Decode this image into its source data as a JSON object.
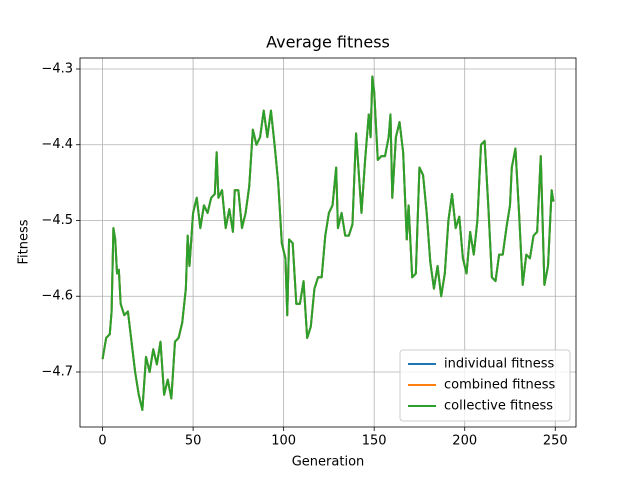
{
  "chart_data": {
    "type": "line",
    "title": "Average fitness",
    "xlabel": "Generation",
    "ylabel": "Fitness",
    "grid": true,
    "legend": "lower right",
    "xlim": [
      -12.45,
      261.45
    ],
    "ylim": [
      -4.7726,
      -4.2855
    ],
    "xticks": [
      0,
      50,
      100,
      150,
      200,
      250
    ],
    "yticks": [
      {
        "value": -4.7,
        "label": "−4.7"
      },
      {
        "value": -4.6,
        "label": "−4.6"
      },
      {
        "value": -4.5,
        "label": "−4.5"
      },
      {
        "value": -4.4,
        "label": "−4.4"
      },
      {
        "value": -4.3,
        "label": "−4.3"
      }
    ],
    "x": [
      0,
      2,
      4,
      5,
      6,
      7,
      8,
      9,
      10,
      12,
      14,
      16,
      18,
      20,
      22,
      24,
      26,
      28,
      30,
      32,
      34,
      36,
      38,
      40,
      42,
      44,
      46,
      47,
      48,
      50,
      52,
      54,
      56,
      58,
      60,
      62,
      63,
      64,
      66,
      68,
      70,
      72,
      73,
      75,
      77,
      79,
      81,
      83,
      85,
      87,
      89,
      91,
      93,
      95,
      97,
      99,
      101,
      102,
      103,
      105,
      107,
      109,
      111,
      113,
      115,
      117,
      119,
      121,
      123,
      125,
      127,
      129,
      130,
      132,
      134,
      136,
      138,
      140,
      141,
      143,
      145,
      147,
      148,
      149,
      150,
      152,
      154,
      156,
      158,
      159,
      160,
      162,
      164,
      166,
      168,
      169,
      171,
      173,
      175,
      177,
      179,
      181,
      183,
      185,
      187,
      189,
      191,
      193,
      195,
      197,
      199,
      201,
      203,
      205,
      207,
      209,
      211,
      213,
      215,
      217,
      219,
      221,
      223,
      225,
      226,
      228,
      230,
      232,
      234,
      236,
      238,
      240,
      242,
      244,
      246,
      248,
      249
    ],
    "series": [
      {
        "name": "individual fitness",
        "color": "#1f77b4",
        "values": [
          -4.683,
          -4.655,
          -4.65,
          -4.62,
          -4.51,
          -4.525,
          -4.57,
          -4.565,
          -4.61,
          -4.625,
          -4.62,
          -4.66,
          -4.7,
          -4.73,
          -4.75,
          -4.68,
          -4.7,
          -4.67,
          -4.69,
          -4.66,
          -4.73,
          -4.71,
          -4.735,
          -4.66,
          -4.655,
          -4.635,
          -4.59,
          -4.52,
          -4.56,
          -4.49,
          -4.47,
          -4.51,
          -4.48,
          -4.49,
          -4.47,
          -4.465,
          -4.41,
          -4.47,
          -4.46,
          -4.51,
          -4.485,
          -4.515,
          -4.46,
          -4.46,
          -4.51,
          -4.49,
          -4.455,
          -4.38,
          -4.4,
          -4.39,
          -4.355,
          -4.39,
          -4.355,
          -4.4,
          -4.45,
          -4.53,
          -4.55,
          -4.625,
          -4.525,
          -4.53,
          -4.61,
          -4.61,
          -4.58,
          -4.655,
          -4.64,
          -4.59,
          -4.575,
          -4.575,
          -4.52,
          -4.49,
          -4.48,
          -4.43,
          -4.51,
          -4.49,
          -4.52,
          -4.52,
          -4.505,
          -4.385,
          -4.42,
          -4.49,
          -4.42,
          -4.36,
          -4.39,
          -4.31,
          -4.33,
          -4.42,
          -4.415,
          -4.415,
          -4.39,
          -4.36,
          -4.47,
          -4.39,
          -4.37,
          -4.41,
          -4.525,
          -4.48,
          -4.575,
          -4.57,
          -4.43,
          -4.44,
          -4.49,
          -4.555,
          -4.59,
          -4.56,
          -4.6,
          -4.57,
          -4.5,
          -4.465,
          -4.51,
          -4.495,
          -4.55,
          -4.57,
          -4.515,
          -4.545,
          -4.5,
          -4.4,
          -4.395,
          -4.48,
          -4.575,
          -4.58,
          -4.545,
          -4.545,
          -4.51,
          -4.48,
          -4.43,
          -4.405,
          -4.49,
          -4.585,
          -4.545,
          -4.55,
          -4.52,
          -4.515,
          -4.415,
          -4.585,
          -4.56,
          -4.46,
          -4.475
        ]
      },
      {
        "name": "combined fitness",
        "color": "#ff7f0e",
        "values": [
          -4.683,
          -4.655,
          -4.65,
          -4.62,
          -4.51,
          -4.525,
          -4.57,
          -4.565,
          -4.61,
          -4.625,
          -4.62,
          -4.66,
          -4.7,
          -4.73,
          -4.75,
          -4.68,
          -4.7,
          -4.67,
          -4.69,
          -4.66,
          -4.73,
          -4.71,
          -4.735,
          -4.66,
          -4.655,
          -4.635,
          -4.59,
          -4.52,
          -4.56,
          -4.49,
          -4.47,
          -4.51,
          -4.48,
          -4.49,
          -4.47,
          -4.465,
          -4.41,
          -4.47,
          -4.46,
          -4.51,
          -4.485,
          -4.515,
          -4.46,
          -4.46,
          -4.51,
          -4.49,
          -4.455,
          -4.38,
          -4.4,
          -4.39,
          -4.355,
          -4.39,
          -4.355,
          -4.4,
          -4.45,
          -4.53,
          -4.55,
          -4.625,
          -4.525,
          -4.53,
          -4.61,
          -4.61,
          -4.58,
          -4.655,
          -4.64,
          -4.59,
          -4.575,
          -4.575,
          -4.52,
          -4.49,
          -4.48,
          -4.43,
          -4.51,
          -4.49,
          -4.52,
          -4.52,
          -4.505,
          -4.385,
          -4.42,
          -4.49,
          -4.42,
          -4.36,
          -4.39,
          -4.31,
          -4.33,
          -4.42,
          -4.415,
          -4.415,
          -4.39,
          -4.36,
          -4.47,
          -4.39,
          -4.37,
          -4.41,
          -4.525,
          -4.48,
          -4.575,
          -4.57,
          -4.43,
          -4.44,
          -4.49,
          -4.555,
          -4.59,
          -4.56,
          -4.6,
          -4.57,
          -4.5,
          -4.465,
          -4.51,
          -4.495,
          -4.55,
          -4.57,
          -4.515,
          -4.545,
          -4.5,
          -4.4,
          -4.395,
          -4.48,
          -4.575,
          -4.58,
          -4.545,
          -4.545,
          -4.51,
          -4.48,
          -4.43,
          -4.405,
          -4.49,
          -4.585,
          -4.545,
          -4.55,
          -4.52,
          -4.515,
          -4.415,
          -4.585,
          -4.56,
          -4.46,
          -4.475
        ]
      },
      {
        "name": "collective fitness",
        "color": "#2ca02c",
        "values": [
          -4.683,
          -4.655,
          -4.65,
          -4.62,
          -4.51,
          -4.525,
          -4.57,
          -4.565,
          -4.61,
          -4.625,
          -4.62,
          -4.66,
          -4.7,
          -4.73,
          -4.75,
          -4.68,
          -4.7,
          -4.67,
          -4.69,
          -4.66,
          -4.73,
          -4.71,
          -4.735,
          -4.66,
          -4.655,
          -4.635,
          -4.59,
          -4.52,
          -4.56,
          -4.49,
          -4.47,
          -4.51,
          -4.48,
          -4.49,
          -4.47,
          -4.465,
          -4.41,
          -4.47,
          -4.46,
          -4.51,
          -4.485,
          -4.515,
          -4.46,
          -4.46,
          -4.51,
          -4.49,
          -4.455,
          -4.38,
          -4.4,
          -4.39,
          -4.355,
          -4.39,
          -4.355,
          -4.4,
          -4.45,
          -4.53,
          -4.55,
          -4.625,
          -4.525,
          -4.53,
          -4.61,
          -4.61,
          -4.58,
          -4.655,
          -4.64,
          -4.59,
          -4.575,
          -4.575,
          -4.52,
          -4.49,
          -4.48,
          -4.43,
          -4.51,
          -4.49,
          -4.52,
          -4.52,
          -4.505,
          -4.385,
          -4.42,
          -4.49,
          -4.42,
          -4.36,
          -4.39,
          -4.31,
          -4.33,
          -4.42,
          -4.415,
          -4.415,
          -4.39,
          -4.36,
          -4.47,
          -4.39,
          -4.37,
          -4.41,
          -4.525,
          -4.48,
          -4.575,
          -4.57,
          -4.43,
          -4.44,
          -4.49,
          -4.555,
          -4.59,
          -4.56,
          -4.6,
          -4.57,
          -4.5,
          -4.465,
          -4.51,
          -4.495,
          -4.55,
          -4.57,
          -4.515,
          -4.545,
          -4.5,
          -4.4,
          -4.395,
          -4.48,
          -4.575,
          -4.58,
          -4.545,
          -4.545,
          -4.51,
          -4.48,
          -4.43,
          -4.405,
          -4.49,
          -4.585,
          -4.545,
          -4.55,
          -4.52,
          -4.515,
          -4.415,
          -4.585,
          -4.56,
          -4.46,
          -4.475
        ]
      }
    ]
  }
}
